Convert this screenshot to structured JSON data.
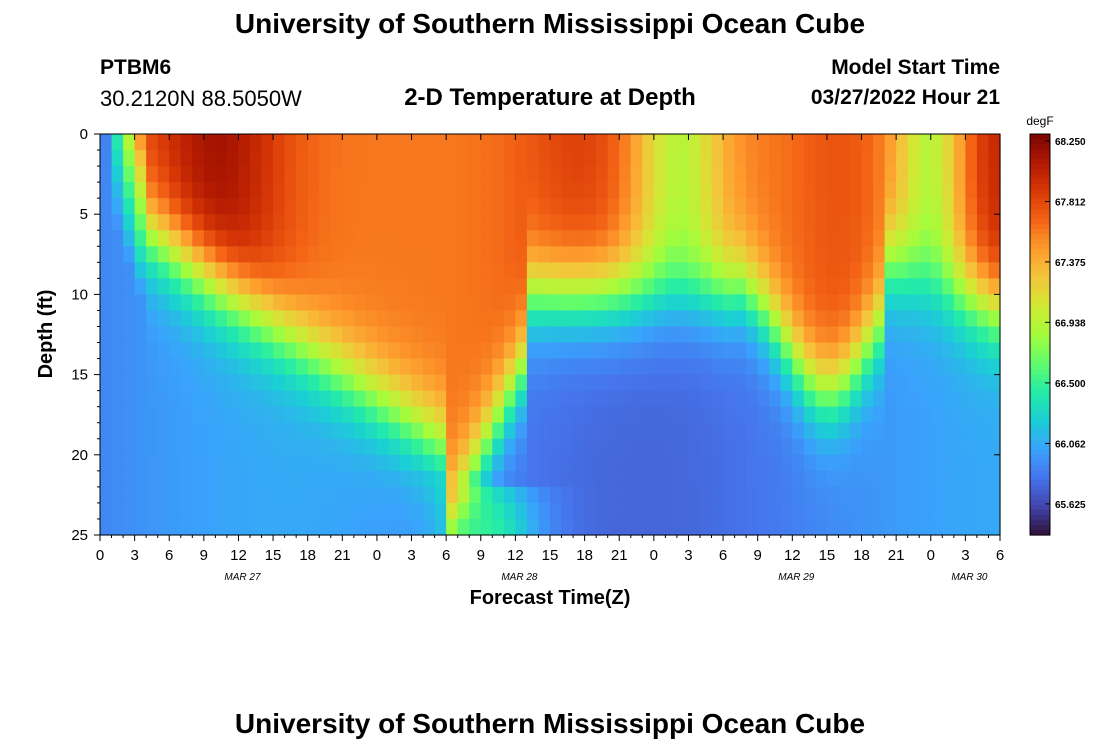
{
  "header": {
    "title": "University of Southern Mississippi Ocean Cube",
    "station_id": "PTBM6",
    "station_coords": "30.2120N  88.5050W",
    "plot_title": "2-D Temperature at Depth",
    "model_start_label": "Model Start Time",
    "model_start_value": "03/27/2022 Hour 21"
  },
  "footer": {
    "title": "University of Southern Mississippi Ocean Cube"
  },
  "chart_data": {
    "type": "heatmap",
    "title": "2-D Temperature at Depth",
    "xlabel": "Forecast Time(Z)",
    "ylabel": "Depth (ft)",
    "x_tick_labels": [
      "0",
      "3",
      "6",
      "9",
      "12",
      "15",
      "18",
      "21",
      "0",
      "3",
      "6",
      "9",
      "12",
      "15",
      "18",
      "21",
      "0",
      "3",
      "6",
      "9",
      "12",
      "15",
      "18",
      "21",
      "0",
      "3",
      "6"
    ],
    "date_labels": [
      {
        "label": "MAR 27",
        "forecast_hour": 12
      },
      {
        "label": "MAR 28",
        "forecast_hour": 36
      },
      {
        "label": "MAR 29",
        "forecast_hour": 60
      },
      {
        "label": "MAR 30",
        "forecast_hour": 75
      }
    ],
    "x_range_hours": [
      0,
      78
    ],
    "y_ticks": [
      0,
      5,
      10,
      15,
      20,
      25
    ],
    "y_range_ft": [
      0,
      25
    ],
    "colorbar": {
      "unit": "degF",
      "tick_labels": [
        "68.250",
        "67.812",
        "67.375",
        "66.938",
        "66.500",
        "66.062",
        "65.625"
      ],
      "range": [
        65.4,
        68.3
      ],
      "colors": [
        "#30123b",
        "#4145ab",
        "#4675ed",
        "#39a2fc",
        "#1bcfd4",
        "#24eca6",
        "#61fc6c",
        "#a4fc3b",
        "#d1e834",
        "#f3c63a",
        "#fe9b2d",
        "#f36315",
        "#d93806",
        "#b11901",
        "#7a0402"
      ]
    },
    "grid": false
  }
}
